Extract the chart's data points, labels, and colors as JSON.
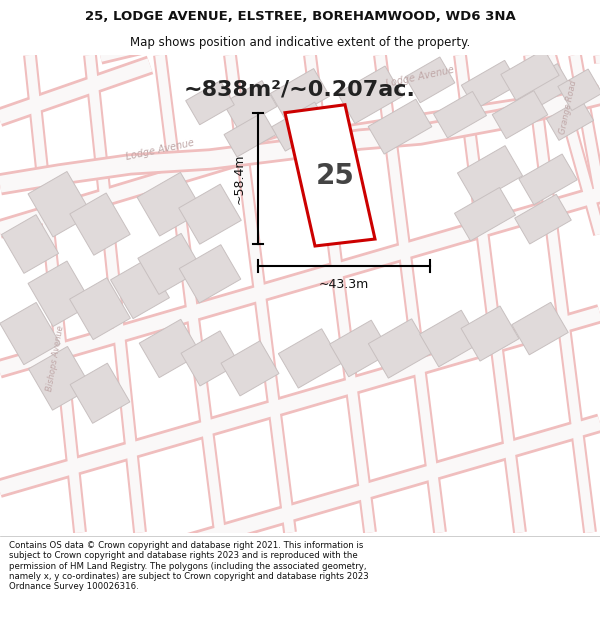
{
  "title_line1": "25, LODGE AVENUE, ELSTREE, BOREHAMWOOD, WD6 3NA",
  "title_line2": "Map shows position and indicative extent of the property.",
  "area_text": "~838m²/~0.207ac.",
  "plot_number": "25",
  "dim_width": "~43.3m",
  "dim_height": "~58.4m",
  "footer_text": "Contains OS data © Crown copyright and database right 2021. This information is subject to Crown copyright and database rights 2023 and is reproduced with the permission of HM Land Registry. The polygons (including the associated geometry, namely x, y co-ordinates) are subject to Crown copyright and database rights 2023 Ordnance Survey 100026316.",
  "map_bg": "#f9f8f8",
  "street_color": "#f0bebe",
  "street_inner": "#faf8f8",
  "building_color": "#e0dada",
  "building_edge": "#c8c0c0",
  "plot_color": "#cc0000",
  "white": "#ffffff",
  "text_dark": "#333333",
  "street_label_color": "#c0a8a8",
  "title_fontsize": 9.5,
  "subtitle_fontsize": 8.5,
  "area_fontsize": 16,
  "dim_fontsize": 9,
  "footer_fontsize": 6.2,
  "plot_label_fontsize": 20
}
